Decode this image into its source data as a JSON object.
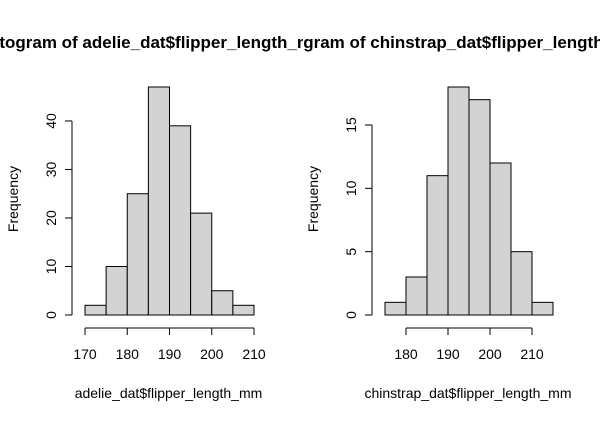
{
  "chart_data": [
    {
      "type": "bar",
      "title": "Histogram of adelie_dat$flipper_length_mm",
      "xlabel": "adelie_dat$flipper_length_mm",
      "ylabel": "Frequency",
      "bin_edges": [
        170,
        175,
        180,
        185,
        190,
        195,
        200,
        205,
        210
      ],
      "values": [
        2,
        10,
        25,
        47,
        39,
        21,
        5,
        2
      ],
      "xlim": [
        170,
        210
      ],
      "ylim": [
        0,
        47
      ],
      "x_ticks": [
        170,
        180,
        190,
        200,
        210
      ],
      "y_ticks": [
        0,
        10,
        20,
        30,
        40
      ]
    },
    {
      "type": "bar",
      "title": "Histogram of chinstrap_dat$flipper_length_mm",
      "xlabel": "chinstrap_dat$flipper_length_mm",
      "ylabel": "Frequency",
      "bin_edges": [
        175,
        180,
        185,
        190,
        195,
        200,
        205,
        210,
        215
      ],
      "values": [
        1,
        3,
        11,
        18,
        17,
        12,
        5,
        1
      ],
      "xlim": [
        175,
        215
      ],
      "ylim": [
        0,
        18
      ],
      "x_ticks": [
        180,
        190,
        200,
        210
      ],
      "y_ticks": [
        0,
        5,
        10,
        15
      ]
    }
  ]
}
